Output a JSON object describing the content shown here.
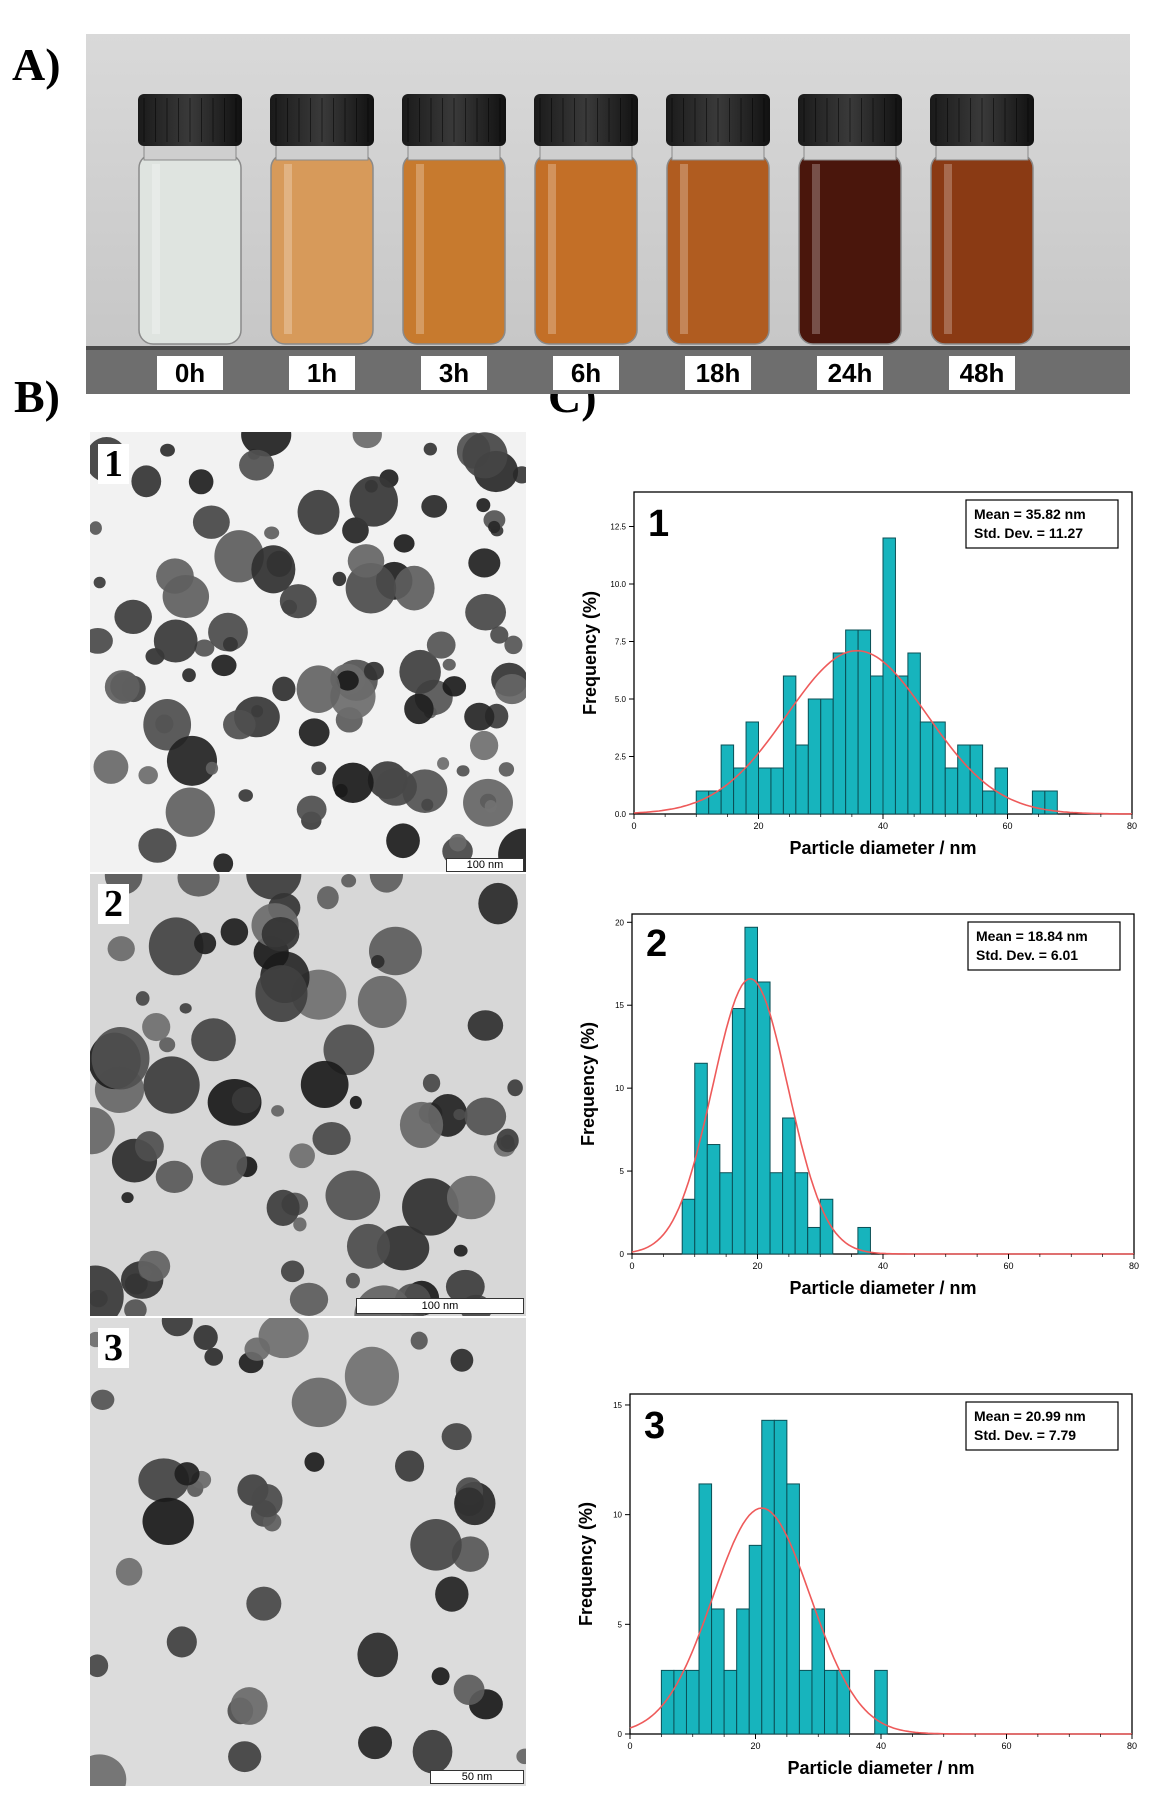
{
  "panel_labels": {
    "a": "A)",
    "b": "B)",
    "c": "C)"
  },
  "vials": [
    "0h",
    "1h",
    "3h",
    "6h",
    "18h",
    "24h",
    "48h"
  ],
  "vial_colors": [
    "#dfe4e0",
    "#d79a5a",
    "#c77a2e",
    "#c36f27",
    "#b05c20",
    "#4a160c",
    "#8a3a14"
  ],
  "tem_panels": [
    {
      "num": "1",
      "scale_label": "100 nm"
    },
    {
      "num": "2",
      "scale_label": "100 nm"
    },
    {
      "num": "3",
      "scale_label": "50 nm"
    }
  ],
  "chart_data": [
    {
      "type": "bar",
      "panel": "1",
      "xlabel": "Particle diameter / nm",
      "ylabel": "Frequency (%)",
      "xlim": [
        0,
        80
      ],
      "ylim": [
        0,
        14
      ],
      "xticks": [
        "0",
        "20",
        "40",
        "60",
        "80"
      ],
      "yticks": [
        "0.0",
        "2.5",
        "5.0",
        "7.5",
        "10.0",
        "12.5"
      ],
      "stats": [
        "Mean = 35.82 nm",
        "Std. Dev. = 11.27"
      ],
      "bin_width": 2,
      "bin_starts": [
        10,
        12,
        14,
        16,
        18,
        20,
        22,
        24,
        26,
        28,
        30,
        32,
        34,
        36,
        38,
        40,
        42,
        44,
        46,
        48,
        50,
        52,
        54,
        56,
        58,
        60,
        62,
        64,
        66
      ],
      "values": [
        1,
        1,
        3,
        2,
        4,
        2,
        2,
        6,
        3,
        5,
        5,
        7,
        8,
        8,
        6,
        12,
        6,
        7,
        4,
        4,
        2,
        3,
        3,
        1,
        2,
        0,
        0,
        1,
        0
      ],
      "values_extra": {
        "66": 1
      },
      "fit": {
        "mean": 35.82,
        "sd": 11.27,
        "peak": 7.1
      }
    },
    {
      "type": "bar",
      "panel": "2",
      "xlabel": "Particle diameter / nm",
      "ylabel": "Frequency (%)",
      "xlim": [
        0,
        80
      ],
      "ylim": [
        0,
        20.5
      ],
      "xticks": [
        "0",
        "20",
        "40",
        "60",
        "80"
      ],
      "yticks": [
        "0",
        "5",
        "10",
        "15",
        "20"
      ],
      "stats": [
        "Mean = 18.84 nm",
        "Std. Dev. = 6.01"
      ],
      "bin_width": 2,
      "bin_starts": [
        8,
        10,
        12,
        14,
        16,
        18,
        20,
        22,
        24,
        26,
        28,
        30,
        32,
        34,
        36
      ],
      "values": [
        3.3,
        11.5,
        6.6,
        4.9,
        14.8,
        19.7,
        16.4,
        4.9,
        8.2,
        4.9,
        1.6,
        3.3,
        0,
        0,
        1.6
      ],
      "fit": {
        "mean": 18.84,
        "sd": 6.01,
        "peak": 16.6
      }
    },
    {
      "type": "bar",
      "panel": "3",
      "xlabel": "Particle diameter / nm",
      "ylabel": "Frequency (%)",
      "xlim": [
        0,
        80
      ],
      "ylim": [
        0,
        15.5
      ],
      "xticks": [
        "0",
        "20",
        "40",
        "60",
        "80"
      ],
      "yticks": [
        "0",
        "5",
        "10",
        "15"
      ],
      "stats": [
        "Mean = 20.99 nm",
        "Std. Dev. = 7.79"
      ],
      "bin_width": 2,
      "bin_starts": [
        5,
        7,
        9,
        11,
        13,
        15,
        17,
        19,
        21,
        23,
        25,
        27,
        29,
        31,
        33,
        35,
        37,
        39
      ],
      "values": [
        2.9,
        2.9,
        2.9,
        11.4,
        5.7,
        2.9,
        5.7,
        8.6,
        14.3,
        14.3,
        11.4,
        2.9,
        5.7,
        2.9,
        2.9,
        0,
        0,
        2.9
      ],
      "fit": {
        "mean": 20.99,
        "sd": 7.79,
        "peak": 10.3
      }
    }
  ]
}
